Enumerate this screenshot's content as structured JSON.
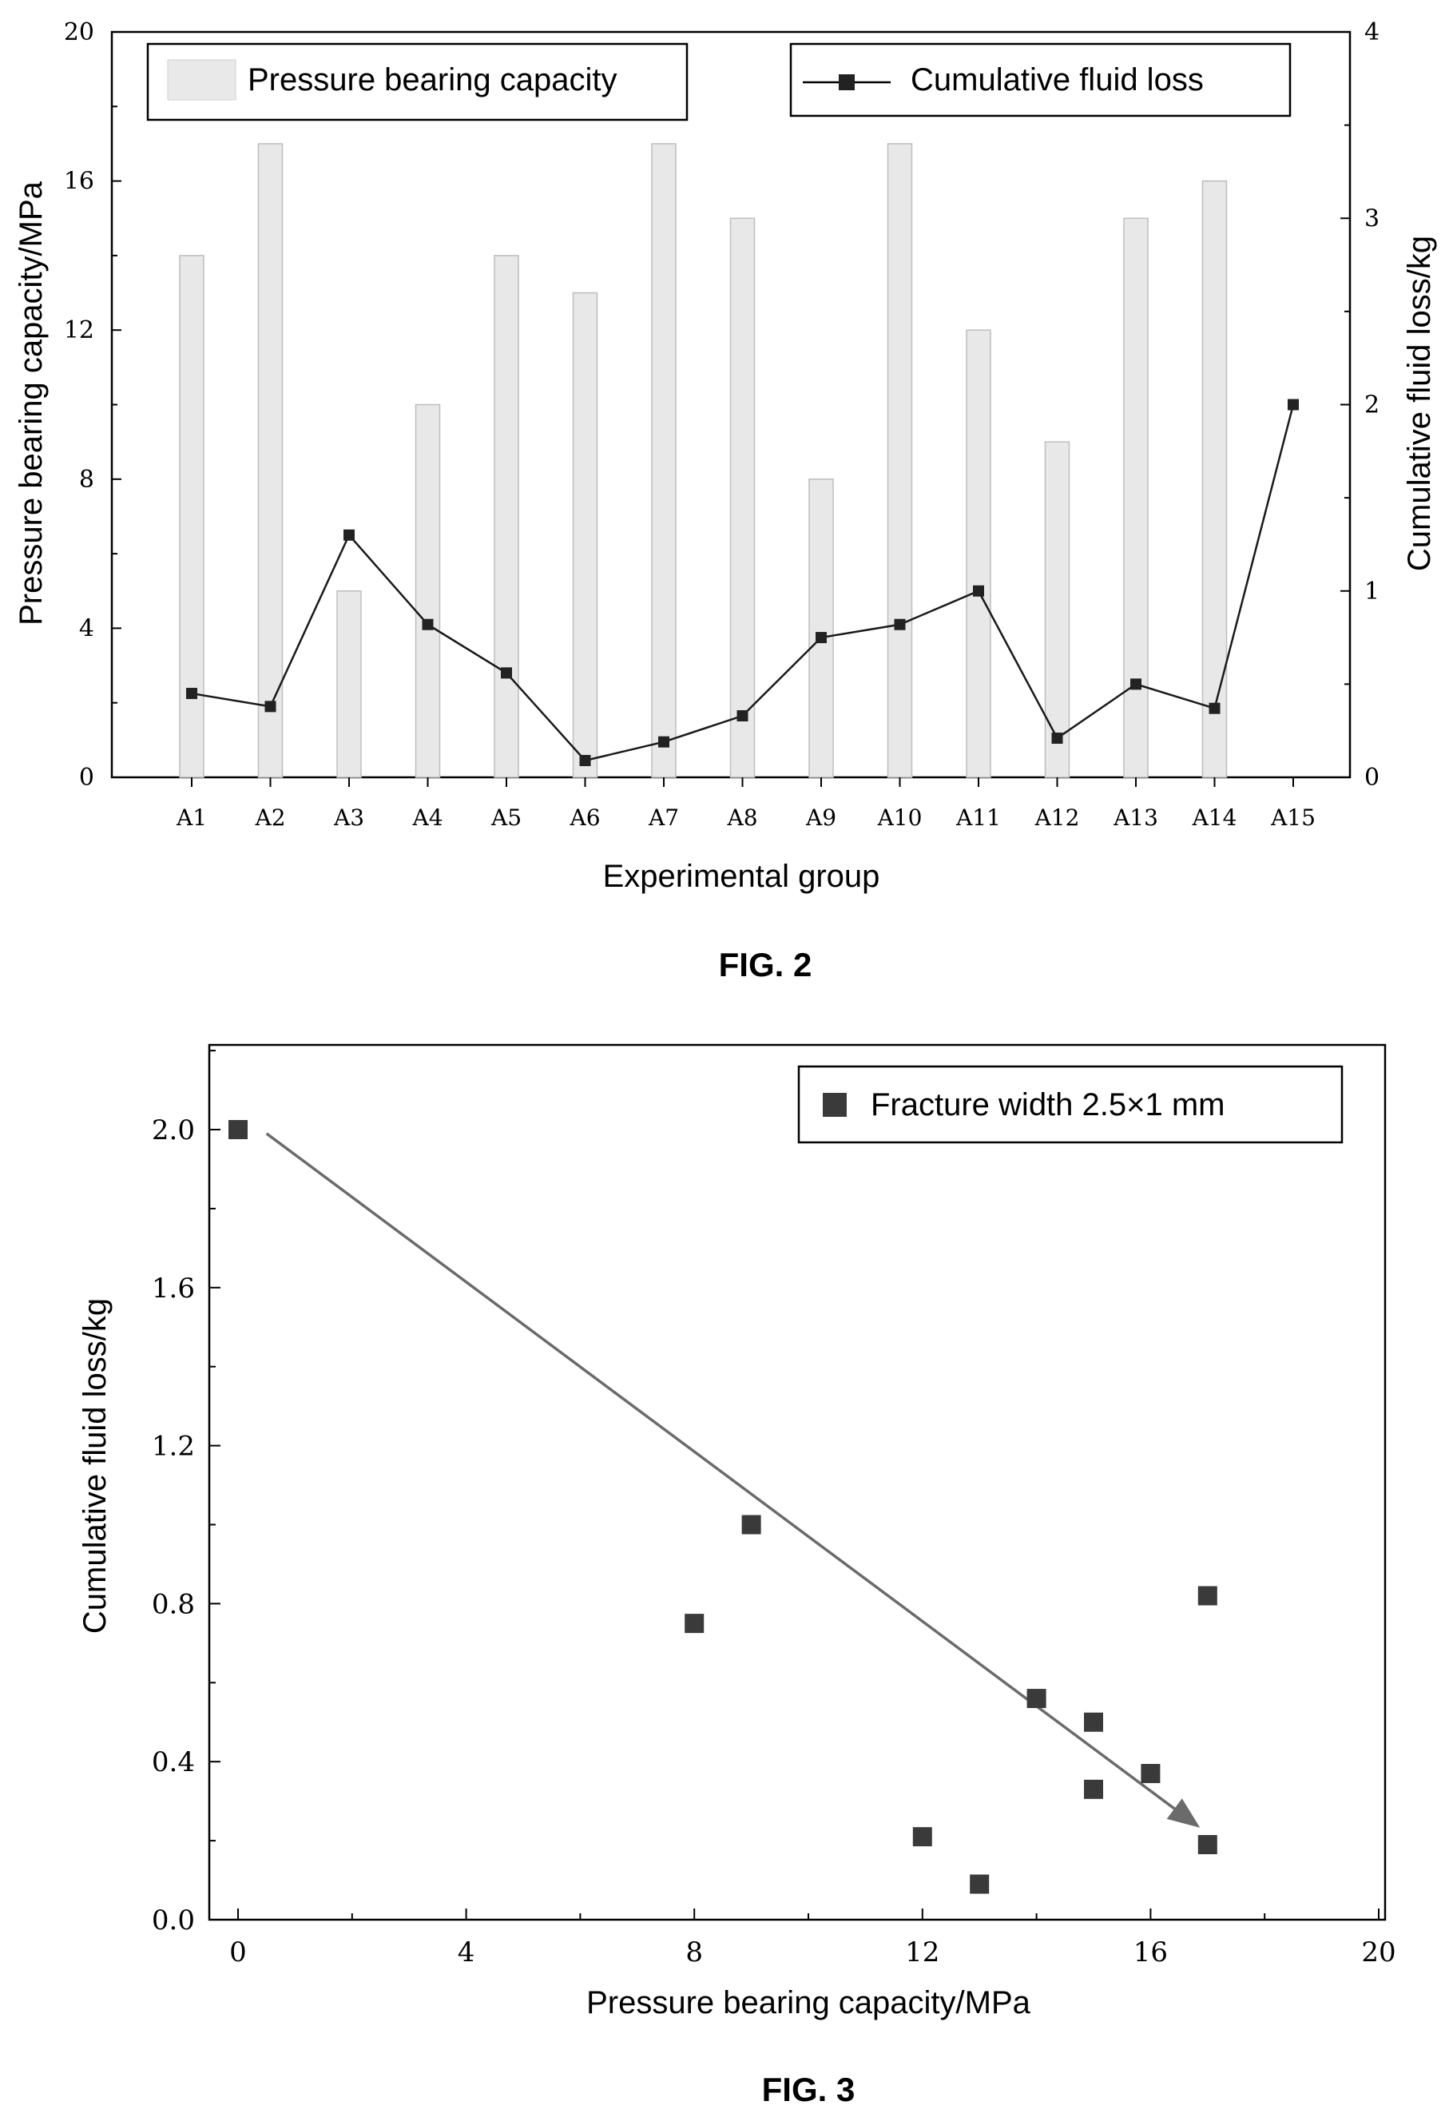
{
  "chart_data": [
    {
      "type": "bar+line",
      "caption": "FIG. 2",
      "xlabel": "Experimental group",
      "ylabel": "Pressure bearing capacity/MPa",
      "y2label": "Cumulative fluid loss/kg",
      "ylim": [
        0,
        20
      ],
      "y2lim": [
        0,
        4
      ],
      "yticks": [
        "0",
        "4",
        "8",
        "12",
        "16",
        "20"
      ],
      "y2ticks": [
        "0",
        "1",
        "2",
        "3",
        "4"
      ],
      "categories": [
        "A1",
        "A2",
        "A3",
        "A4",
        "A5",
        "A6",
        "A7",
        "A8",
        "A9",
        "A10",
        "A11",
        "A12",
        "A13",
        "A14",
        "A15"
      ],
      "series": [
        {
          "name": "Pressure bearing capacity",
          "kind": "bar",
          "axis": "left",
          "values": [
            14,
            17,
            5,
            10,
            14,
            13,
            17,
            15,
            8,
            17,
            12,
            9,
            15,
            16,
            0
          ]
        },
        {
          "name": "Cumulative fluid loss",
          "kind": "line",
          "axis": "right",
          "values": [
            0.45,
            0.38,
            1.3,
            0.82,
            0.56,
            0.09,
            0.19,
            0.33,
            0.75,
            0.82,
            1.0,
            0.21,
            0.5,
            0.37,
            2.0
          ]
        }
      ],
      "legend": "top"
    },
    {
      "type": "scatter",
      "caption": "FIG. 3",
      "xlabel": "Pressure bearing capacity/MPa",
      "ylabel": "Cumulative fluid loss/kg",
      "xlim": [
        0,
        20
      ],
      "ylim": [
        0,
        2.2
      ],
      "xticks": [
        "0",
        "4",
        "8",
        "12",
        "16",
        "20"
      ],
      "yticks": [
        "0.0",
        "0.4",
        "0.8",
        "1.2",
        "1.6",
        "2.0"
      ],
      "series": [
        {
          "name": "Fracture width 2.5×1 mm",
          "points": [
            [
              0,
              2.0
            ],
            [
              8,
              0.75
            ],
            [
              9,
              1.0
            ],
            [
              12,
              0.21
            ],
            [
              13,
              0.09
            ],
            [
              14,
              0.56
            ],
            [
              15,
              0.5
            ],
            [
              15,
              0.33
            ],
            [
              16,
              0.37
            ],
            [
              17,
              0.82
            ],
            [
              17,
              0.19
            ]
          ]
        }
      ],
      "trend_arrow": {
        "from": [
          0.5,
          1.99
        ],
        "to": [
          16.8,
          0.24
        ]
      },
      "legend": "top-right"
    }
  ]
}
